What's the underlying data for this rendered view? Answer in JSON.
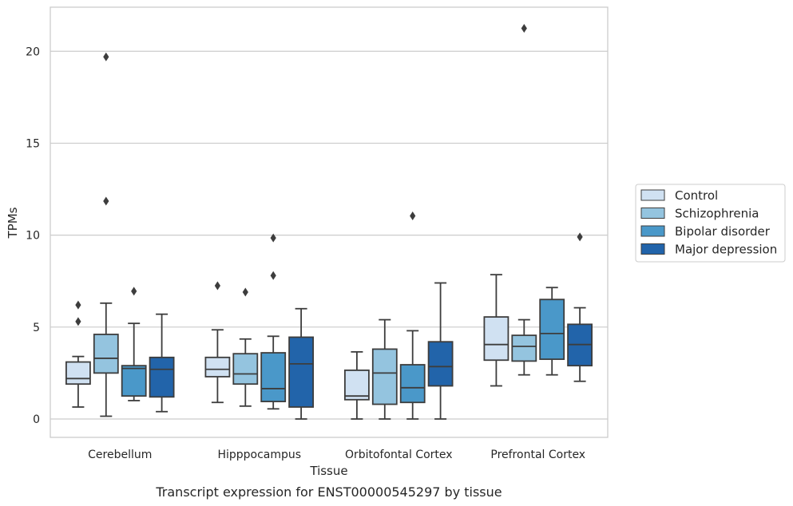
{
  "chart_data": {
    "type": "box",
    "caption": "Transcript expression for ENST00000545297 by tissue",
    "xlabel": "Tissue",
    "ylabel": "TPMs",
    "ylim": [
      -1,
      22.4
    ],
    "yticks": [
      0,
      5,
      10,
      15,
      20
    ],
    "ytick_labels": [
      "0",
      "5",
      "10",
      "15",
      "20"
    ],
    "grid": "horizontal",
    "legend_position": "right",
    "categories": [
      "Cerebellum",
      "Hipppocampus",
      "Orbitofontal Cortex",
      "Prefrontal Cortex"
    ],
    "series": [
      {
        "name": "Control",
        "color": "#d0e1f2",
        "boxes": [
          {
            "whislo": 0.65,
            "q1": 1.9,
            "med": 2.2,
            "q3": 3.1,
            "whishi": 3.4,
            "fliers": [
              5.3,
              6.2
            ]
          },
          {
            "whislo": 0.9,
            "q1": 2.3,
            "med": 2.7,
            "q3": 3.35,
            "whishi": 4.85,
            "fliers": [
              7.25
            ]
          },
          {
            "whislo": 0.0,
            "q1": 1.05,
            "med": 1.25,
            "q3": 2.65,
            "whishi": 3.65,
            "fliers": []
          },
          {
            "whislo": 1.8,
            "q1": 3.2,
            "med": 4.05,
            "q3": 5.55,
            "whishi": 7.85,
            "fliers": []
          }
        ]
      },
      {
        "name": "Schizophrenia",
        "color": "#94c4df",
        "boxes": [
          {
            "whislo": 0.15,
            "q1": 2.5,
            "med": 3.3,
            "q3": 4.6,
            "whishi": 6.3,
            "fliers": [
              11.85,
              19.7
            ]
          },
          {
            "whislo": 0.7,
            "q1": 1.9,
            "med": 2.45,
            "q3": 3.55,
            "whishi": 4.35,
            "fliers": [
              6.9
            ]
          },
          {
            "whislo": 0.0,
            "q1": 0.8,
            "med": 2.5,
            "q3": 3.8,
            "whishi": 5.4,
            "fliers": []
          },
          {
            "whislo": 2.4,
            "q1": 3.15,
            "med": 3.95,
            "q3": 4.55,
            "whishi": 5.4,
            "fliers": [
              21.25
            ]
          }
        ]
      },
      {
        "name": "Bipolar disorder",
        "color": "#4a98c9",
        "boxes": [
          {
            "whislo": 1.0,
            "q1": 1.25,
            "med": 2.75,
            "q3": 2.9,
            "whishi": 5.2,
            "fliers": [
              6.95
            ]
          },
          {
            "whislo": 0.55,
            "q1": 0.95,
            "med": 1.65,
            "q3": 3.6,
            "whishi": 4.5,
            "fliers": [
              7.8,
              9.85
            ]
          },
          {
            "whislo": 0.0,
            "q1": 0.9,
            "med": 1.7,
            "q3": 2.95,
            "whishi": 4.8,
            "fliers": [
              11.05
            ]
          },
          {
            "whislo": 2.4,
            "q1": 3.25,
            "med": 4.65,
            "q3": 6.5,
            "whishi": 7.15,
            "fliers": []
          }
        ]
      },
      {
        "name": "Major depression",
        "color": "#2264aa",
        "boxes": [
          {
            "whislo": 0.4,
            "q1": 1.2,
            "med": 2.7,
            "q3": 3.35,
            "whishi": 5.7,
            "fliers": []
          },
          {
            "whislo": 0.0,
            "q1": 0.65,
            "med": 3.0,
            "q3": 4.45,
            "whishi": 6.0,
            "fliers": []
          },
          {
            "whislo": 0.0,
            "q1": 1.8,
            "med": 2.85,
            "q3": 4.2,
            "whishi": 7.4,
            "fliers": []
          },
          {
            "whislo": 2.05,
            "q1": 2.9,
            "med": 4.05,
            "q3": 5.15,
            "whishi": 6.05,
            "fliers": [
              9.9
            ]
          }
        ]
      }
    ]
  }
}
